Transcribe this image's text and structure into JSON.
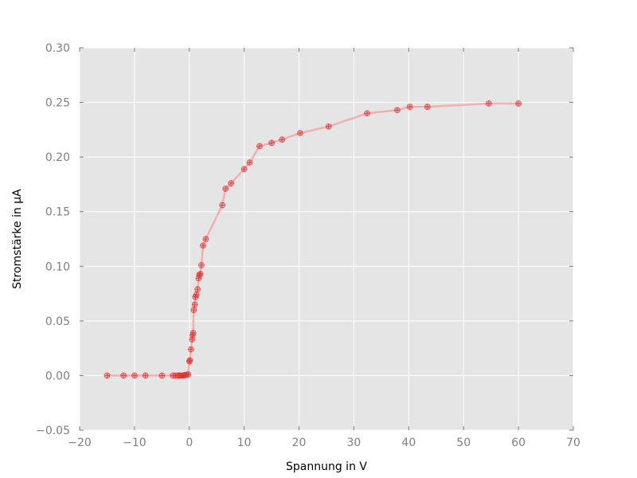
{
  "chart_data": {
    "type": "line",
    "xlabel": "Spannung in V",
    "ylabel": "Stromstärke in µA",
    "xlim": [
      -20,
      70
    ],
    "ylim": [
      -0.05,
      0.3
    ],
    "xticks": [
      -20,
      -10,
      0,
      10,
      20,
      30,
      40,
      50,
      60,
      70
    ],
    "yticks": [
      -0.05,
      0.0,
      0.05,
      0.1,
      0.15,
      0.2,
      0.25,
      0.3
    ],
    "xtick_labels": [
      "−20",
      "−10",
      "0",
      "10",
      "20",
      "30",
      "40",
      "50",
      "60",
      "70"
    ],
    "ytick_labels": [
      "−0.05",
      "0.00",
      "0.05",
      "0.10",
      "0.15",
      "0.20",
      "0.25",
      "0.30"
    ],
    "grid": true,
    "style": {
      "background": "#e5e5e5",
      "grid": "#ffffff",
      "line": "#f2a7a7",
      "marker": "#e03030"
    },
    "series": [
      {
        "x": [
          -15,
          -12,
          -10,
          -8,
          -5,
          -3,
          -2.5,
          -2,
          -1.8,
          -1.5,
          -1.2,
          -1,
          -0.8,
          -0.5,
          -0.2,
          0,
          0.1,
          0.3,
          0.5,
          0.6,
          0.7,
          0.8,
          1.0,
          1.1,
          1.3,
          1.5,
          1.7,
          1.8,
          2.0,
          2.2,
          2.5,
          3.0,
          6.0,
          6.6,
          7.6,
          10.0,
          11.0,
          12.8,
          15.0,
          16.9,
          20.2,
          25.4,
          32.4,
          37.9,
          40.2,
          43.4,
          54.6,
          60.0
        ],
        "y": [
          0.0,
          0.0,
          0.0,
          0.0,
          0.0,
          0.0,
          0.0,
          0.0,
          0.0,
          0.0,
          0.0,
          0.0,
          0.0005,
          0.0008,
          0.001,
          0.013,
          0.014,
          0.024,
          0.033,
          0.037,
          0.039,
          0.06,
          0.065,
          0.072,
          0.074,
          0.079,
          0.089,
          0.092,
          0.093,
          0.101,
          0.119,
          0.125,
          0.156,
          0.171,
          0.176,
          0.189,
          0.195,
          0.21,
          0.213,
          0.216,
          0.222,
          0.228,
          0.24,
          0.243,
          0.246,
          0.246,
          0.249,
          0.249
        ]
      }
    ]
  }
}
